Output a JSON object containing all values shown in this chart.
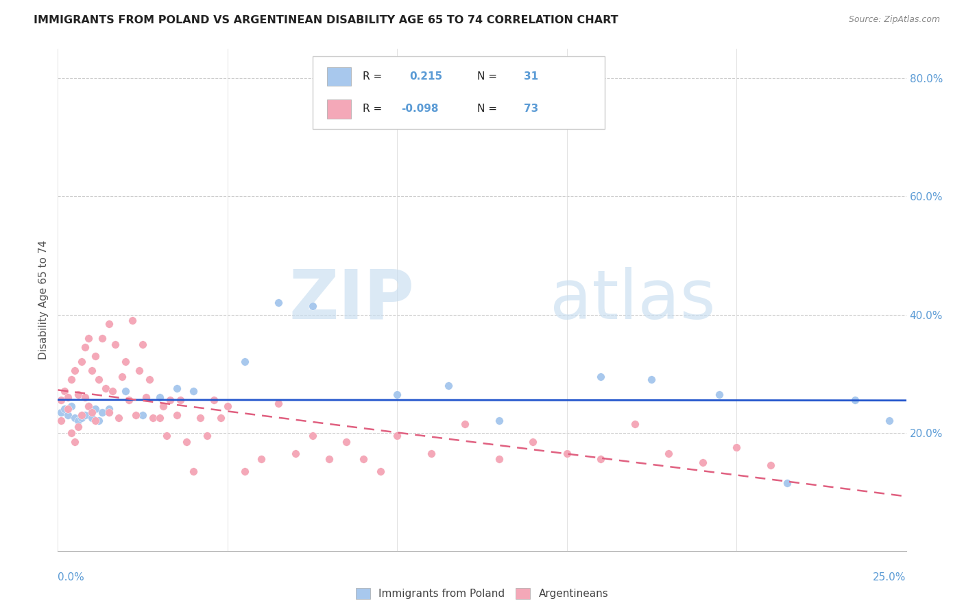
{
  "title": "IMMIGRANTS FROM POLAND VS ARGENTINEAN DISABILITY AGE 65 TO 74 CORRELATION CHART",
  "source": "Source: ZipAtlas.com",
  "ylabel": "Disability Age 65 to 74",
  "legend_label1": "Immigrants from Poland",
  "legend_label2": "Argentineans",
  "color_blue": "#A8C8ED",
  "color_pink": "#F4A8B8",
  "color_blue_line": "#2255CC",
  "color_pink_line": "#E06080",
  "color_title": "#222222",
  "color_axis_labels": "#5B9BD5",
  "xmin": 0.0,
  "xmax": 0.25,
  "ymin": 0.0,
  "ymax": 0.85,
  "ytick_vals": [
    0.2,
    0.4,
    0.6,
    0.8
  ],
  "ytick_labels": [
    "20.0%",
    "40.0%",
    "60.0%",
    "80.0%"
  ],
  "blue_scatter_x": [
    0.001,
    0.002,
    0.003,
    0.004,
    0.005,
    0.006,
    0.007,
    0.008,
    0.009,
    0.01,
    0.011,
    0.012,
    0.013,
    0.015,
    0.02,
    0.025,
    0.03,
    0.035,
    0.04,
    0.055,
    0.065,
    0.075,
    0.1,
    0.115,
    0.13,
    0.16,
    0.175,
    0.195,
    0.215,
    0.235,
    0.245
  ],
  "blue_scatter_y": [
    0.235,
    0.24,
    0.23,
    0.245,
    0.225,
    0.22,
    0.225,
    0.23,
    0.245,
    0.225,
    0.24,
    0.22,
    0.235,
    0.24,
    0.27,
    0.23,
    0.26,
    0.275,
    0.27,
    0.32,
    0.42,
    0.415,
    0.265,
    0.28,
    0.22,
    0.295,
    0.29,
    0.265,
    0.115,
    0.255,
    0.22
  ],
  "pink_scatter_x": [
    0.001,
    0.001,
    0.002,
    0.003,
    0.003,
    0.004,
    0.004,
    0.005,
    0.005,
    0.006,
    0.006,
    0.007,
    0.007,
    0.008,
    0.008,
    0.009,
    0.009,
    0.01,
    0.01,
    0.011,
    0.011,
    0.012,
    0.013,
    0.014,
    0.015,
    0.015,
    0.016,
    0.017,
    0.018,
    0.019,
    0.02,
    0.021,
    0.022,
    0.023,
    0.024,
    0.025,
    0.026,
    0.027,
    0.028,
    0.03,
    0.031,
    0.032,
    0.033,
    0.035,
    0.036,
    0.038,
    0.04,
    0.042,
    0.044,
    0.046,
    0.048,
    0.05,
    0.055,
    0.06,
    0.065,
    0.07,
    0.075,
    0.08,
    0.085,
    0.09,
    0.095,
    0.1,
    0.11,
    0.12,
    0.13,
    0.14,
    0.15,
    0.16,
    0.17,
    0.18,
    0.19,
    0.2,
    0.21
  ],
  "pink_scatter_y": [
    0.255,
    0.22,
    0.27,
    0.24,
    0.26,
    0.29,
    0.2,
    0.305,
    0.185,
    0.265,
    0.21,
    0.32,
    0.23,
    0.345,
    0.26,
    0.36,
    0.245,
    0.305,
    0.235,
    0.33,
    0.22,
    0.29,
    0.36,
    0.275,
    0.385,
    0.235,
    0.27,
    0.35,
    0.225,
    0.295,
    0.32,
    0.255,
    0.39,
    0.23,
    0.305,
    0.35,
    0.26,
    0.29,
    0.225,
    0.225,
    0.245,
    0.195,
    0.255,
    0.23,
    0.255,
    0.185,
    0.135,
    0.225,
    0.195,
    0.255,
    0.225,
    0.245,
    0.135,
    0.155,
    0.25,
    0.165,
    0.195,
    0.155,
    0.185,
    0.155,
    0.135,
    0.195,
    0.165,
    0.215,
    0.155,
    0.185,
    0.165,
    0.155,
    0.215,
    0.165,
    0.15,
    0.175,
    0.145
  ]
}
